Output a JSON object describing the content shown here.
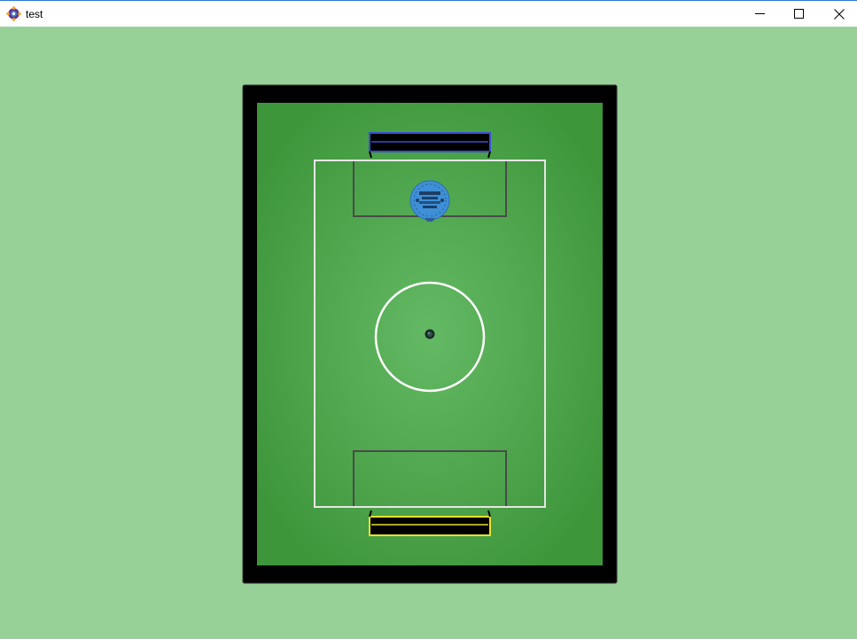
{
  "window": {
    "title": "test",
    "app_icon": "gear-sparkle-icon",
    "controls": {
      "minimize": "minimize-icon",
      "maximize": "maximize-icon",
      "close": "close-icon"
    }
  },
  "game": {
    "colors": {
      "background": "#98d198",
      "wall": "#000000",
      "pitch_inner": "#64b964",
      "pitch_outer": "#3e963b",
      "field_lines": "#e6e6e6",
      "box_lines": "#4a4a4a",
      "top_goal": "#3a4fd0",
      "bottom_goal": "#e6e02c",
      "robot": "#3e8fd6",
      "ball": "#1a2a2a"
    },
    "objects": {
      "ball": "ball",
      "robot": "robot-blue",
      "top_goal": "goal-blue",
      "bottom_goal": "goal-yellow"
    }
  }
}
